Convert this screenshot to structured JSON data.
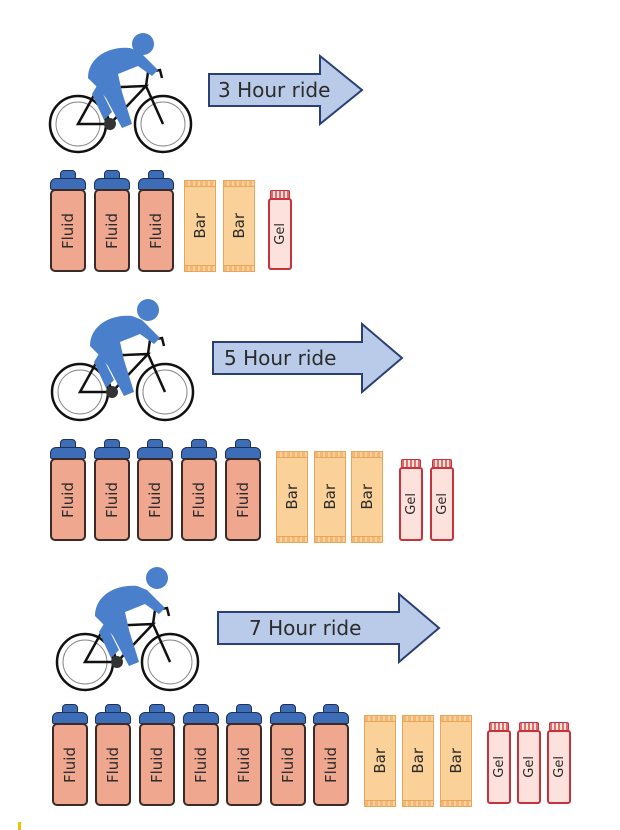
{
  "rows": [
    {
      "ride_label": "3 Hour ride",
      "fluid_label": "Fluid",
      "bar_label": "Bar",
      "gel_label": "Gel",
      "fluid_count": 3,
      "bar_count": 2,
      "gel_count": 1
    },
    {
      "ride_label": "5 Hour ride",
      "fluid_label": "Fluid",
      "bar_label": "Bar",
      "gel_label": "Gel",
      "fluid_count": 5,
      "bar_count": 3,
      "gel_count": 2
    },
    {
      "ride_label": "7 Hour ride",
      "fluid_label": "Fluid",
      "bar_label": "Bar",
      "gel_label": "Gel",
      "fluid_count": 7,
      "bar_count": 3,
      "gel_count": 3
    }
  ],
  "colors": {
    "rider": "#4a7fcb",
    "arrow_fill": "#b9cbe8",
    "arrow_stroke": "#2a3f73",
    "bottle_body": "#f0a78f",
    "bottle_cap": "#3d6db7",
    "bar": "#fbd19a",
    "gel": "#fde1dc"
  },
  "icons": [
    "cyclist-icon",
    "arrow-icon",
    "bottle-icon",
    "bar-icon",
    "gel-icon"
  ]
}
